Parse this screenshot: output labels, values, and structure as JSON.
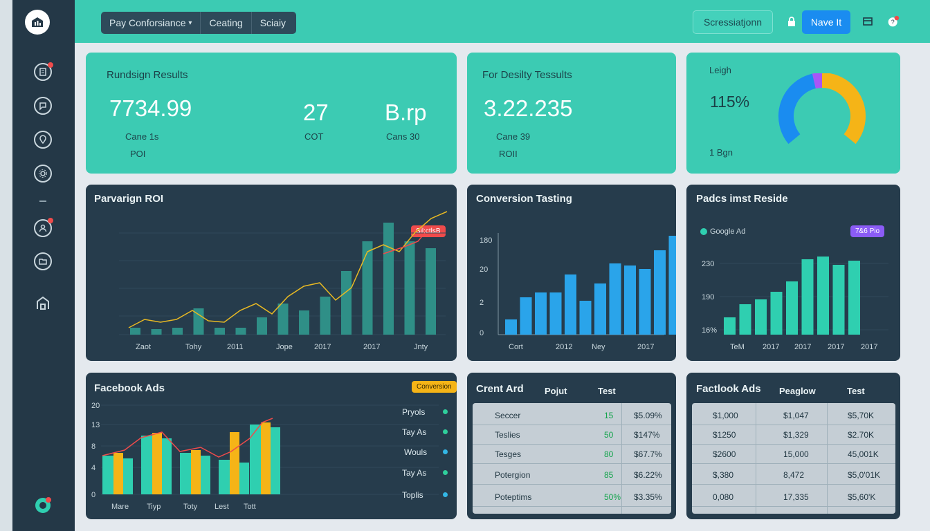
{
  "header": {
    "segments": [
      "Pay Conforsiance",
      "Ceating",
      "Sciaiy"
    ],
    "outline_button": "Scressiatjonn",
    "primary_button": "Nave It"
  },
  "kpi1": {
    "title": "Rundsign Results",
    "value_main": "7734.99",
    "label_main_1": "Cane 1s",
    "label_main_2": "POI",
    "value_mid": "27",
    "label_mid": "COT",
    "value_right": "B.rp",
    "label_right": "Cans 30"
  },
  "kpi2": {
    "title": "For Desilty Tessults",
    "value": "3.22.235",
    "label_1": "Cane 39",
    "label_2": "ROII"
  },
  "kpi3": {
    "title": "Leigh",
    "value": "115%",
    "sublabel": "1 Bgn",
    "gauge": [
      {
        "fraction": 0.45,
        "color": "#1a8cf0"
      },
      {
        "fraction": 0.05,
        "color": "#a855f7"
      },
      {
        "fraction": 0.5,
        "color": "#f5b417"
      }
    ]
  },
  "roi_chart": {
    "title": "Parvarign ROI",
    "badge": "Sil;ctlsB",
    "xlabels": [
      "Zaot",
      "Tohy",
      "2011",
      "Jope",
      "2017",
      "2017",
      "Jnty"
    ]
  },
  "conversion_chart": {
    "title": "Conversion Tasting",
    "yticks": [
      "180",
      "20",
      "2",
      "0"
    ],
    "xlabels": [
      "Cort",
      "2012",
      "Ney",
      "2017"
    ]
  },
  "resides_chart": {
    "title": "Padcs imst Reside",
    "legend": "Google Ad",
    "badge": "7&6 Pio",
    "yticks": [
      "230",
      "190",
      "16%"
    ],
    "xlabels": [
      "TeM",
      "2017",
      "2017",
      "2017",
      "2017"
    ]
  },
  "facebook_chart": {
    "title": "Facebook Ads",
    "badge": "Conversion",
    "yticks": [
      "20",
      "13",
      "8",
      "4",
      "0"
    ],
    "xlabels": [
      "Mare",
      "Tiyp",
      "Toty",
      "Lest",
      "Tott"
    ],
    "legend": [
      {
        "label": "Pryols",
        "color": "#2fcf9c"
      },
      {
        "label": "Tay As",
        "color": "#2fcf9c"
      },
      {
        "label": "Wouls",
        "color": "#33b7e6"
      },
      {
        "label": "Tay As",
        "color": "#2fcf9c"
      },
      {
        "label": "Toplis",
        "color": "#33b7e6"
      }
    ]
  },
  "crent_table": {
    "title": "Crent Ard",
    "headers": [
      "Pojut",
      "Test"
    ],
    "rows": [
      [
        "Seccer",
        "15",
        "$5.09%"
      ],
      [
        "Teslies",
        "50",
        "$147%"
      ],
      [
        "Tesges",
        "80",
        "$67.7%"
      ],
      [
        "Potergion",
        "85",
        "$6.22%"
      ],
      [
        "Poteptims",
        "50%",
        "$3.35%"
      ]
    ]
  },
  "factlook_table": {
    "title": "Factlook Ads",
    "headers": [
      "Peaglow",
      "Test"
    ],
    "rows": [
      [
        "$1,000",
        "$1,047",
        "$5,70K"
      ],
      [
        "$1250",
        "$1,329",
        "$2.70K"
      ],
      [
        "$2600",
        "15,000",
        "45,001K"
      ],
      [
        "$,380",
        "8,472",
        "$5,0'01K"
      ],
      [
        "0,080",
        "17,335",
        "$5,60'K"
      ]
    ]
  }
}
